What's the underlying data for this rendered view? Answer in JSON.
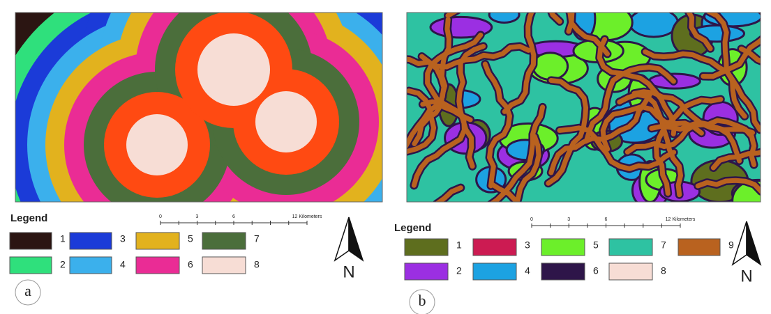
{
  "panels": [
    {
      "label": "a",
      "legend": {
        "title": "Legend",
        "items": [
          {
            "label": "1",
            "color": "#2b1512"
          },
          {
            "label": "2",
            "color": "#2fe07c"
          },
          {
            "label": "3",
            "color": "#1b3bd8"
          },
          {
            "label": "4",
            "color": "#3bb0ec"
          },
          {
            "label": "5",
            "color": "#e2b21e"
          },
          {
            "label": "6",
            "color": "#ea2c95"
          },
          {
            "label": "7",
            "color": "#4b6e3b"
          },
          {
            "label": "8",
            "color": "#f7ddd5"
          }
        ]
      },
      "scale": {
        "ticks": [
          "0",
          "3",
          "6"
        ],
        "unit": "12 Kilometers"
      },
      "north": "N"
    },
    {
      "label": "b",
      "legend": {
        "title": "Legend",
        "items": [
          {
            "label": "1",
            "color": "#5e6e1e"
          },
          {
            "label": "2",
            "color": "#9b2fe2"
          },
          {
            "label": "3",
            "color": "#cc1b52"
          },
          {
            "label": "4",
            "color": "#1ca2e2"
          },
          {
            "label": "5",
            "color": "#6cef2a"
          },
          {
            "label": "6",
            "color": "#2e1549"
          },
          {
            "label": "7",
            "color": "#2ec2a2"
          },
          {
            "label": "8",
            "color": "#f7ddd5"
          },
          {
            "label": "9",
            "color": "#b9621f"
          }
        ]
      },
      "scale": {
        "ticks": [
          "0",
          "3",
          "6"
        ],
        "unit": "12 Kilometers"
      },
      "north": "N"
    }
  ]
}
